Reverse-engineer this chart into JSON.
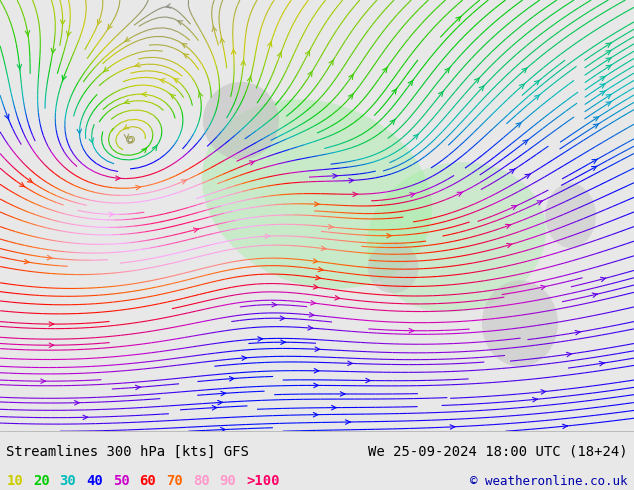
{
  "title_left": "Streamlines 300 hPa [kts] GFS",
  "title_right": "We 25-09-2024 18:00 UTC (18+24)",
  "copyright": "© weatheronline.co.uk",
  "legend_values": [
    "10",
    "20",
    "30",
    "40",
    "50",
    "60",
    "70",
    "80",
    "90",
    ">100"
  ],
  "legend_colors": [
    "#cccc00",
    "#00cc00",
    "#00bbbb",
    "#0000ff",
    "#cc00cc",
    "#ff0000",
    "#ff6600",
    "#ff99cc",
    "#ff99cc",
    "#ff0066"
  ],
  "bg_color": "#e8e8e8",
  "map_bg": "#f0f0f0",
  "bottom_bar_color": "#ffffff",
  "bottom_bar_height": 0.12,
  "figsize": [
    6.34,
    4.9
  ],
  "dpi": 100,
  "title_fontsize": 10,
  "legend_fontsize": 10,
  "copyright_fontsize": 9
}
